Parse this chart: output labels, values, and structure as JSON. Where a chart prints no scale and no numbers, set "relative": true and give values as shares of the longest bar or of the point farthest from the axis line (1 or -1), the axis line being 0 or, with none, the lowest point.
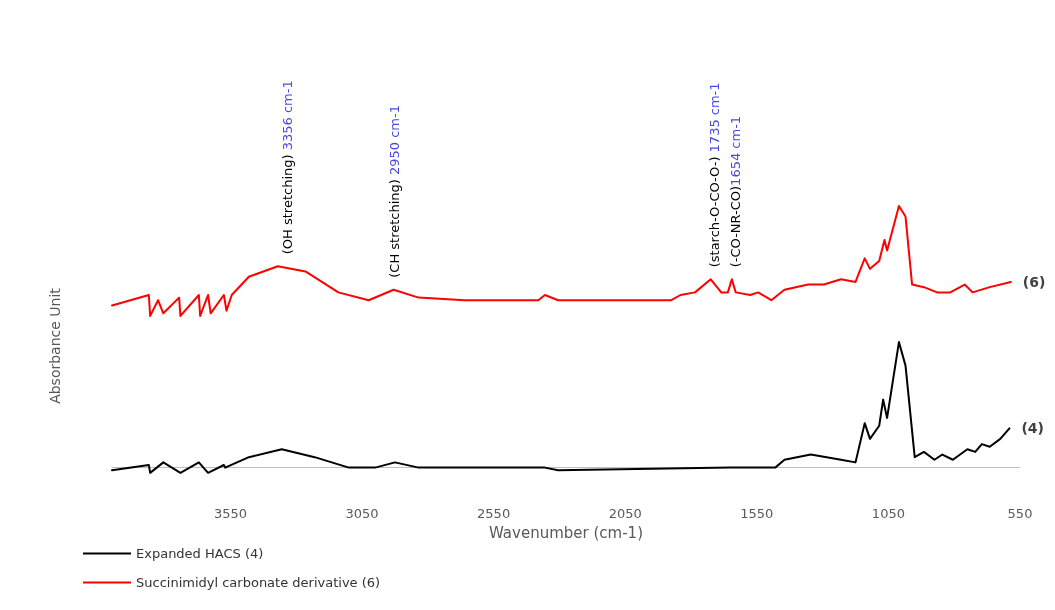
{
  "chart_data": {
    "type": "line",
    "relative": true,
    "xlabel": "Wavenumber (cm-1)",
    "ylabel": "Absorbance Unit",
    "xlim": [
      4000,
      550
    ],
    "xticks": [
      3550,
      3050,
      2550,
      2050,
      1550,
      1050,
      550
    ],
    "legend": "bottom left",
    "grid": false,
    "marker": "none",
    "line_style": "solid",
    "series": [
      {
        "name": "Expanded HACS (4)",
        "color": "#000000",
        "x": [
          4000,
          3860,
          3855,
          3805,
          3740,
          3670,
          3635,
          3575,
          3570,
          3480,
          3355,
          3230,
          3100,
          3000,
          2925,
          2835,
          2370,
          2355,
          2305,
          1650,
          1480,
          1445,
          1345,
          1230,
          1175,
          1140,
          1120,
          1085,
          1070,
          1055,
          1010,
          985,
          950,
          915,
          875,
          845,
          805,
          750,
          720,
          695,
          665,
          625,
          590
        ],
        "values": [
          -0.01,
          0.01,
          -0.02,
          0.02,
          -0.02,
          0.02,
          -0.02,
          0.01,
          0.0,
          0.04,
          0.07,
          0.04,
          0.0,
          0.0,
          0.02,
          0.0,
          0.0,
          0.0,
          -0.01,
          0.0,
          0.0,
          0.03,
          0.05,
          0.03,
          0.02,
          0.17,
          0.11,
          0.16,
          0.26,
          0.19,
          0.48,
          0.39,
          0.04,
          0.06,
          0.03,
          0.05,
          0.03,
          0.07,
          0.06,
          0.09,
          0.08,
          0.11,
          0.15
        ]
      },
      {
        "name": "Succinimidyl carbonate derivative (6)",
        "color": "#ff0000",
        "x": [
          4000,
          3860,
          3855,
          3825,
          3805,
          3745,
          3740,
          3670,
          3665,
          3635,
          3625,
          3575,
          3565,
          3545,
          3480,
          3370,
          3265,
          3140,
          3025,
          2930,
          2835,
          2660,
          2380,
          2355,
          2305,
          1875,
          1840,
          1785,
          1725,
          1685,
          1660,
          1645,
          1630,
          1575,
          1545,
          1495,
          1445,
          1355,
          1295,
          1230,
          1175,
          1140,
          1120,
          1085,
          1065,
          1055,
          1010,
          985,
          960,
          915,
          865,
          815,
          760,
          730,
          665,
          585
        ],
        "values": [
          0.62,
          0.66,
          0.58,
          0.64,
          0.59,
          0.65,
          0.58,
          0.66,
          0.58,
          0.66,
          0.59,
          0.66,
          0.6,
          0.66,
          0.73,
          0.77,
          0.75,
          0.67,
          0.64,
          0.68,
          0.65,
          0.64,
          0.64,
          0.66,
          0.64,
          0.64,
          0.66,
          0.67,
          0.72,
          0.67,
          0.67,
          0.72,
          0.67,
          0.66,
          0.67,
          0.64,
          0.68,
          0.7,
          0.7,
          0.72,
          0.71,
          0.8,
          0.76,
          0.79,
          0.87,
          0.83,
          1.0,
          0.96,
          0.7,
          0.69,
          0.67,
          0.67,
          0.7,
          0.67,
          0.69,
          0.71
        ]
      }
    ],
    "annotations": [
      {
        "text": "(OH stretching) 3356 cm-1",
        "x": 3356,
        "y": 0.77
      },
      {
        "text": "(CH stretching) 2950 cm-1",
        "x": 2950,
        "y": 0.68
      },
      {
        "text": "(starch-O-CO-O-) 1735 cm-1",
        "x": 1735,
        "y": 0.72
      },
      {
        "text": "(-CO-NR-CO)1654 cm-1",
        "x": 1654,
        "y": 0.72
      },
      {
        "text": "(6)",
        "x": 585,
        "y": 0.71
      },
      {
        "text": "(4)",
        "x": 590,
        "y": 0.15
      }
    ]
  }
}
